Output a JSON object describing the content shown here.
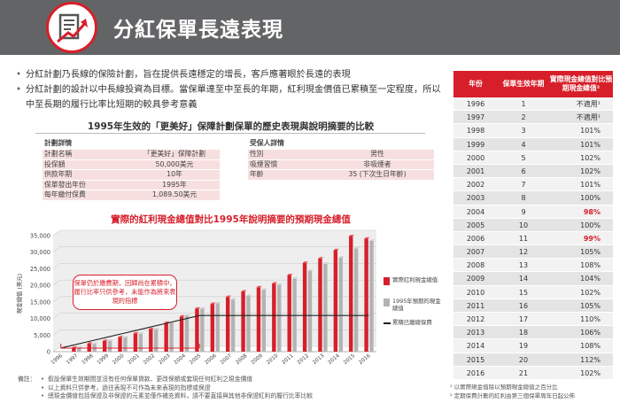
{
  "header": {
    "title": "分紅保單長遠表現"
  },
  "bullets": [
    "分紅計劃乃長線的保險計劃，旨在提供長遠穩定的增長，客戶應著眼於長遠的表現",
    "分紅計劃的設計以中長線投資為目標。當保單達至中至長的年期，紅利現金價值已累積至一定程度，所以中至長期的履行比率比短期的較具參考意義"
  ],
  "case_title": "1995年生效的「更美好」保障計劃保單的歷史表現與說明摘要的比較",
  "plan_details": {
    "heading": "計劃詳情",
    "rows": [
      {
        "label": "計劃名稱",
        "value": "「更美好」保障計劃"
      },
      {
        "label": "投保額",
        "value": "50,000美元"
      },
      {
        "label": "供款年期",
        "value": "10年"
      },
      {
        "label": "保單發出年份",
        "value": "1995年"
      },
      {
        "label": "每年繳付保費",
        "value": "1,089.50美元"
      }
    ]
  },
  "insured_details": {
    "heading": "受保人詳情",
    "rows": [
      {
        "label": "性別",
        "value": "男性"
      },
      {
        "label": "吸煙習慣",
        "value": "非吸煙者"
      },
      {
        "label": "年齡",
        "value": "35 (下次生日年齡)"
      }
    ]
  },
  "callout": "保單仍於繳費期，回歸尚在累積中，履行比率只供參考，未能作為將來表現的指標",
  "legend": {
    "actual": "實際紅利現金總值",
    "projected": "1995年預期的現金總值",
    "premium": "累積已繳總保費"
  },
  "notes": {
    "label": "備註：",
    "items": [
      "假設保單生效期間並沒有任何保單貸款、更改保額或套現任何紅利之現金價值",
      "以上資料只供參考，過往表現不可作為未來表現的指標或保證",
      "總現金價值包括保證及非保證的元素並僅作補充資料，請不要直接與其他非保證紅利的履行比率比較"
    ]
  },
  "right_table": {
    "headers": [
      "年份",
      "保單生效年期",
      "實際現金總值對比預期現金總值²"
    ],
    "rows": [
      {
        "year": "1996",
        "term": "1",
        "ratio": "不適用¹",
        "hl": false
      },
      {
        "year": "1997",
        "term": "2",
        "ratio": "不適用¹",
        "hl": false
      },
      {
        "year": "1998",
        "term": "3",
        "ratio": "101%",
        "hl": false
      },
      {
        "year": "1999",
        "term": "4",
        "ratio": "101%",
        "hl": false
      },
      {
        "year": "2000",
        "term": "5",
        "ratio": "102%",
        "hl": false
      },
      {
        "year": "2001",
        "term": "6",
        "ratio": "102%",
        "hl": false
      },
      {
        "year": "2002",
        "term": "7",
        "ratio": "101%",
        "hl": false
      },
      {
        "year": "2003",
        "term": "8",
        "ratio": "100%",
        "hl": false
      },
      {
        "year": "2004",
        "term": "9",
        "ratio": "98%",
        "hl": true
      },
      {
        "year": "2005",
        "term": "10",
        "ratio": "100%",
        "hl": false
      },
      {
        "year": "2006",
        "term": "11",
        "ratio": "99%",
        "hl": true
      },
      {
        "year": "2007",
        "term": "12",
        "ratio": "105%",
        "hl": false
      },
      {
        "year": "2008",
        "term": "13",
        "ratio": "108%",
        "hl": false
      },
      {
        "year": "2009",
        "term": "14",
        "ratio": "104%",
        "hl": false
      },
      {
        "year": "2010",
        "term": "15",
        "ratio": "102%",
        "hl": false
      },
      {
        "year": "2011",
        "term": "16",
        "ratio": "105%",
        "hl": false
      },
      {
        "year": "2012",
        "term": "17",
        "ratio": "110%",
        "hl": false
      },
      {
        "year": "2013",
        "term": "18",
        "ratio": "106%",
        "hl": false
      },
      {
        "year": "2014",
        "term": "19",
        "ratio": "108%",
        "hl": false
      },
      {
        "year": "2015",
        "term": "20",
        "ratio": "112%",
        "hl": false
      },
      {
        "year": "2016",
        "term": "21",
        "ratio": "102%",
        "hl": false
      }
    ],
    "notes": [
      "¹ 以實際現金值除以預期現金總值之百分比",
      "² 定期保費計劃的紅利由第三個保單周年日起公佈"
    ]
  },
  "colors": {
    "accent": "#d71f2a",
    "header_bg": "#636466",
    "projected": "#b3b3b3",
    "premium_line": "#222222"
  },
  "chart_data": {
    "type": "bar",
    "title": "實際的紅利現金總值對比1995年說明摘要的預期現金總值",
    "ylabel": "現金總值 (美元)",
    "ylim": [
      0,
      35000
    ],
    "yticks": [
      0,
      5000,
      10000,
      15000,
      20000,
      25000,
      30000,
      35000
    ],
    "ytick_labels": [
      "0",
      "5,000",
      "10,000",
      "15,000",
      "20,000",
      "25,000",
      "30,000",
      "35,000"
    ],
    "categories": [
      "1996",
      "1997",
      "1998",
      "1999",
      "2000",
      "2001",
      "2002",
      "2003",
      "2004",
      "2005",
      "2006",
      "2007",
      "2008",
      "2009",
      "2010",
      "2011",
      "2012",
      "2013",
      "2014",
      "2015",
      "2016"
    ],
    "series": [
      {
        "name": "實際紅利現金總值",
        "values": [
          0,
          1150,
          2400,
          3250,
          4350,
          5500,
          6800,
          8700,
          10600,
          12950,
          14400,
          16500,
          18150,
          19400,
          20550,
          23100,
          26800,
          28100,
          30600,
          34850,
          34100
        ]
      },
      {
        "name": "1995年預期的現金總值",
        "values": [
          0,
          1100,
          2350,
          3200,
          4250,
          5400,
          6750,
          8700,
          10800,
          12950,
          14550,
          15700,
          16800,
          18650,
          20150,
          22000,
          24350,
          26500,
          28350,
          31100,
          33400
        ]
      },
      {
        "name": "累積已繳總保費",
        "values": [
          1089.5,
          2179,
          3268.5,
          4358,
          5447.5,
          6537,
          7626.5,
          8716,
          9805.5,
          10895,
          10895,
          10895,
          10895,
          10895,
          10895,
          10895,
          10895,
          10895,
          10895,
          10895,
          10895
        ]
      }
    ]
  }
}
